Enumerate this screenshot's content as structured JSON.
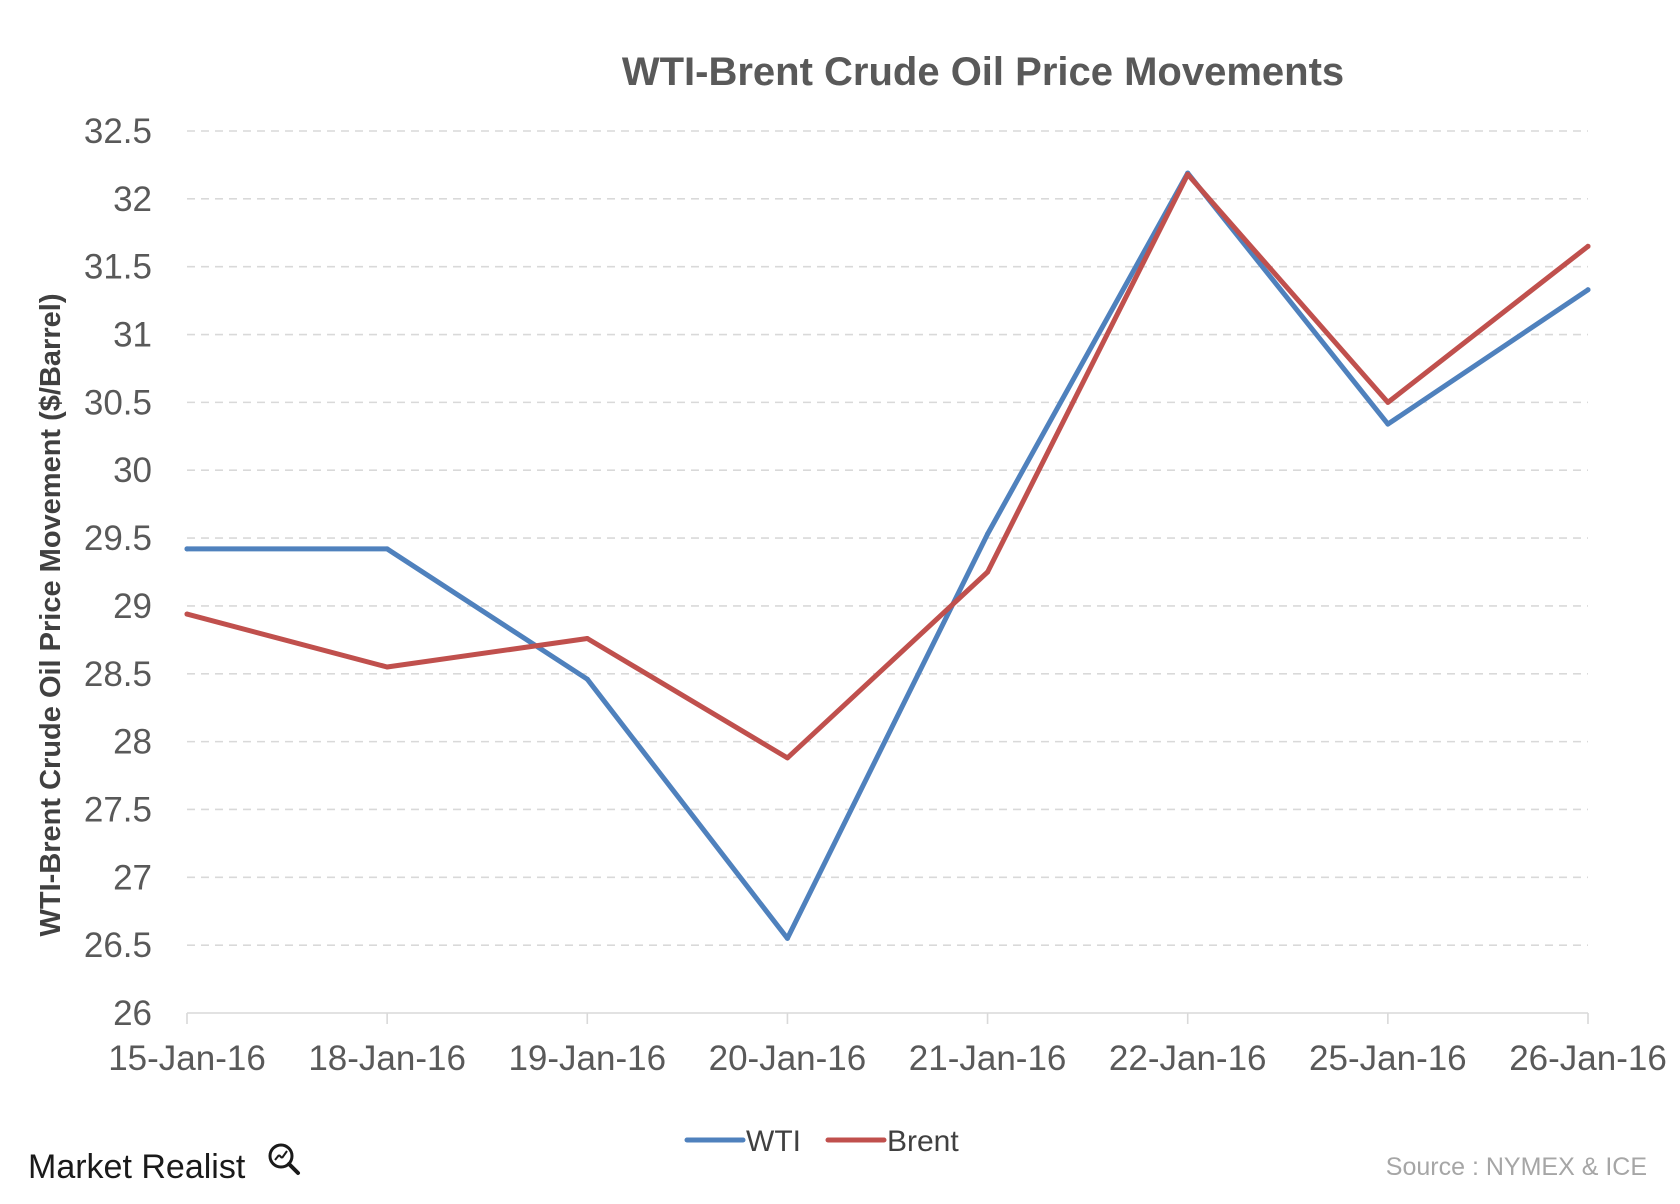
{
  "brand": {
    "name": "Market Realist"
  },
  "source": "Source : NYMEX & ICE",
  "chart_data": {
    "type": "line",
    "title": "WTI-Brent Crude Oil Price Movements",
    "xlabel": "",
    "ylabel": "WTI-Brent Crude Oil Price Movement ($/Barrel)",
    "categories": [
      "15-Jan-16",
      "18-Jan-16",
      "19-Jan-16",
      "20-Jan-16",
      "21-Jan-16",
      "22-Jan-16",
      "25-Jan-16",
      "26-Jan-16"
    ],
    "series": [
      {
        "name": "WTI",
        "color": "#4f81bd",
        "values": [
          29.42,
          29.42,
          28.46,
          26.55,
          29.53,
          32.19,
          30.34,
          31.33
        ]
      },
      {
        "name": "Brent",
        "color": "#c0504d",
        "values": [
          28.94,
          28.55,
          28.76,
          27.88,
          29.25,
          32.18,
          30.5,
          31.65
        ]
      }
    ],
    "ylim": [
      26,
      32.5
    ],
    "yticks": [
      "26",
      "26.5",
      "27",
      "27.5",
      "28",
      "28.5",
      "29",
      "29.5",
      "30",
      "30.5",
      "31",
      "31.5",
      "32",
      "32.5"
    ],
    "grid": true,
    "legend": "bottom"
  }
}
